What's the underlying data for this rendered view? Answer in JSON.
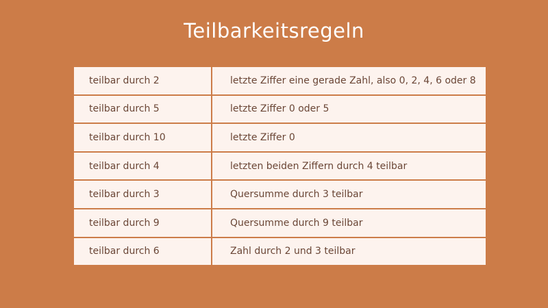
{
  "title": "Teilbarkeitsregeln",
  "colors": {
    "background": "#cc7c48",
    "cell": "#fdf3ee",
    "text": "#6a4636"
  },
  "rows": [
    {
      "rule": "teilbar durch 2",
      "condition": "letzte Ziffer eine gerade Zahl, also 0, 2, 4, 6 oder 8"
    },
    {
      "rule": "teilbar durch 5",
      "condition": "letzte Ziffer 0 oder 5"
    },
    {
      "rule": "teilbar durch 10",
      "condition": "letzte Ziffer 0"
    },
    {
      "rule": "teilbar durch 4",
      "condition": "letzten beiden Ziffern durch 4 teilbar"
    },
    {
      "rule": "teilbar durch 3",
      "condition": "Quersumme durch 3 teilbar"
    },
    {
      "rule": "teilbar durch 9",
      "condition": "Quersumme durch 9 teilbar"
    },
    {
      "rule": "teilbar durch 6",
      "condition": "Zahl durch 2 und 3 teilbar"
    }
  ]
}
